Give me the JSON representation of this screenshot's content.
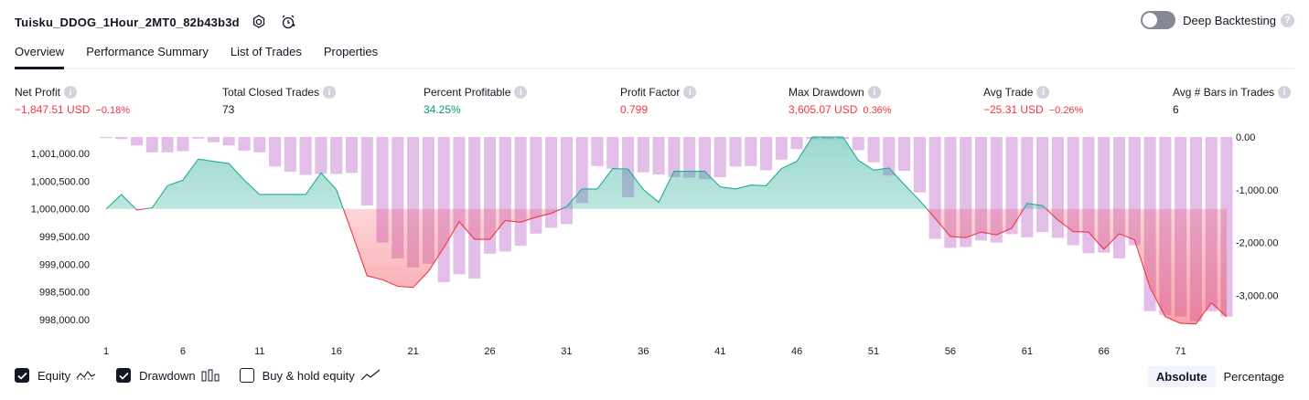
{
  "header": {
    "strategy_name": "Tuisku_DDOG_1Hour_2MT0_82b43b3d",
    "settings_icon": "gear-icon",
    "alert_icon": "add-alert-icon",
    "deep_backtesting_label": "Deep Backtesting",
    "deep_backtesting_on": false
  },
  "tabs": [
    {
      "label": "Overview",
      "active": true
    },
    {
      "label": "Performance Summary",
      "active": false
    },
    {
      "label": "List of Trades",
      "active": false
    },
    {
      "label": "Properties",
      "active": false
    }
  ],
  "metrics": [
    {
      "label": "Net Profit",
      "value": "−1,847.51 USD",
      "percent": "−0.18%",
      "color": "#f23645"
    },
    {
      "label": "Total Closed Trades",
      "value": "73",
      "percent": "",
      "color": "#131722"
    },
    {
      "label": "Percent Profitable",
      "value": "34.25%",
      "percent": "",
      "color": "#089981"
    },
    {
      "label": "Profit Factor",
      "value": "0.799",
      "percent": "",
      "color": "#f23645"
    },
    {
      "label": "Max Drawdown",
      "value": "3,605.07 USD",
      "percent": "0.36%",
      "color": "#f23645"
    },
    {
      "label": "Avg Trade",
      "value": "−25.31 USD",
      "percent": "−0.26%",
      "color": "#f23645"
    },
    {
      "label": "Avg # Bars in Trades",
      "value": "6",
      "percent": "",
      "color": "#131722"
    }
  ],
  "legend": {
    "equity_label": "Equity",
    "equity_checked": true,
    "drawdown_label": "Drawdown",
    "drawdown_checked": true,
    "buyhold_label": "Buy & hold equity",
    "buyhold_checked": false
  },
  "modes": {
    "absolute_label": "Absolute",
    "percentage_label": "Percentage",
    "selected": "Absolute"
  },
  "colors": {
    "equity_up_line": "#22ab94",
    "equity_down_line": "#f23645",
    "drawdown_bar": "#ce93d8",
    "text": "#131722",
    "axis_text": "#131722"
  },
  "chart_data": {
    "type": "area",
    "x": [
      1,
      2,
      3,
      4,
      5,
      6,
      7,
      8,
      9,
      10,
      11,
      12,
      13,
      14,
      15,
      16,
      17,
      18,
      19,
      20,
      21,
      22,
      23,
      24,
      25,
      26,
      27,
      28,
      29,
      30,
      31,
      32,
      33,
      34,
      35,
      36,
      37,
      38,
      39,
      40,
      41,
      42,
      43,
      44,
      45,
      46,
      47,
      48,
      49,
      50,
      51,
      52,
      53,
      54,
      55,
      56,
      57,
      58,
      59,
      60,
      61,
      62,
      63,
      64,
      65,
      66,
      67,
      68,
      69,
      70,
      71,
      72,
      73,
      74
    ],
    "x_ticks": [
      "1",
      "6",
      "11",
      "16",
      "21",
      "26",
      "31",
      "36",
      "41",
      "46",
      "51",
      "56",
      "61",
      "66",
      "71"
    ],
    "equity_baseline": 1000000,
    "series": [
      {
        "axis": "left",
        "values": [
          1000000,
          1000260,
          999980,
          1000020,
          1000420,
          1000520,
          1000900,
          1000860,
          1000820,
          1000520,
          1000260,
          1000260,
          1000260,
          1000260,
          1000650,
          1000350,
          999580,
          998790,
          998720,
          998600,
          998580,
          998870,
          999300,
          999770,
          999450,
          999450,
          999790,
          999760,
          999850,
          999920,
          1000040,
          1000360,
          1000360,
          1000730,
          1000720,
          1000350,
          1000120,
          1000680,
          1000680,
          1000680,
          1000400,
          1000360,
          1000430,
          1000420,
          1000730,
          1000860,
          1001300,
          1001300,
          1001300,
          1000880,
          1000700,
          1000740,
          1000440,
          1000150,
          999830,
          999500,
          999480,
          999580,
          999530,
          999650,
          1000100,
          1000060,
          999800,
          999590,
          999580,
          999270,
          999550,
          999440,
          998580,
          998050,
          997930,
          997920,
          998300,
          998050
        ]
      },
      {
        "axis": "right",
        "values": [
          -20,
          -40,
          -160,
          -290,
          -290,
          -270,
          -30,
          -100,
          -160,
          -260,
          -290,
          -560,
          -660,
          -720,
          -700,
          -700,
          -680,
          -1300,
          -2000,
          -2300,
          -2470,
          -2400,
          -2750,
          -2600,
          -2680,
          -2210,
          -2170,
          -2060,
          -1830,
          -1720,
          -1650,
          -1250,
          -550,
          -600,
          -1140,
          -670,
          -710,
          -760,
          -770,
          -800,
          -760,
          -560,
          -550,
          -630,
          -430,
          -230,
          -40,
          -40,
          -40,
          -250,
          -480,
          -730,
          -640,
          -1050,
          -1930,
          -2100,
          -2080,
          -1960,
          -2000,
          -1840,
          -1900,
          -1800,
          -1910,
          -2050,
          -2200,
          -2190,
          -2300,
          -2050,
          -3300,
          -3370,
          -3400,
          -3490,
          -3300,
          -3400
        ]
      }
    ],
    "y_left_ticks": [
      "1,001,000.00",
      "1,000,500.00",
      "1,000,000.00",
      "999,500.00",
      "999,000.00",
      "998,500.00",
      "998,000.00"
    ],
    "y_right_ticks": [
      "0.00",
      "-1,000.00",
      "-2,000.00",
      "-3,000.00"
    ],
    "ylim_left": [
      997700,
      1001300
    ],
    "ylim_right": [
      -3770,
      0
    ],
    "grid": false,
    "legend_position": "bottom-left"
  }
}
